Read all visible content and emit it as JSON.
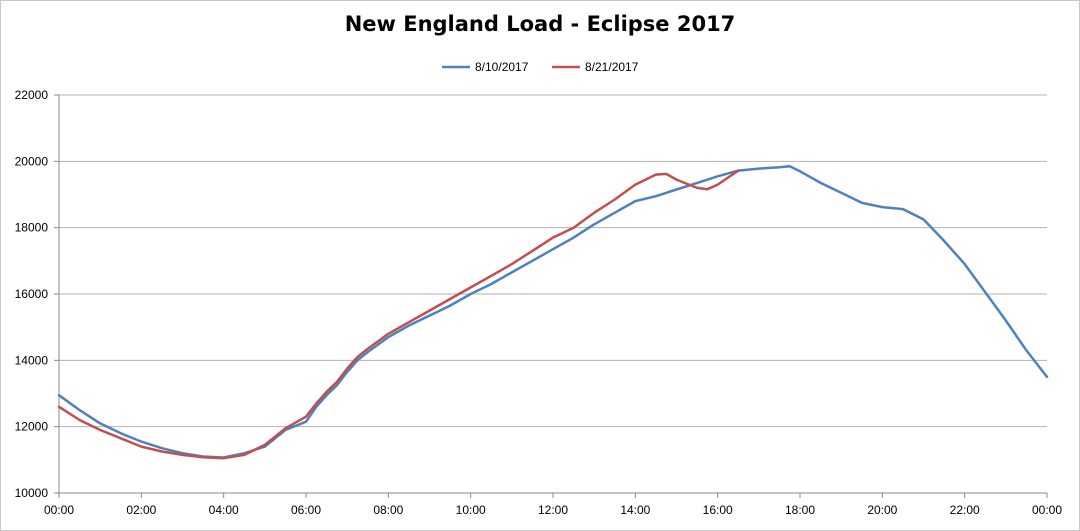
{
  "chart_data": {
    "type": "line",
    "title": "New England Load - Eclipse 2017",
    "xlabel": "",
    "ylabel": "",
    "xlim": [
      0,
      24
    ],
    "ylim": [
      10000,
      22000
    ],
    "x_ticks": [
      "00:00",
      "02:00",
      "04:00",
      "06:00",
      "08:00",
      "10:00",
      "12:00",
      "14:00",
      "16:00",
      "18:00",
      "20:00",
      "22:00",
      "00:00"
    ],
    "y_ticks": [
      "10000",
      "12000",
      "14000",
      "16000",
      "18000",
      "20000",
      "22000"
    ],
    "grid": "horizontal",
    "legend": "top-center",
    "series": [
      {
        "name": "8/10/2017",
        "color": "#4f81bd",
        "points": [
          [
            0,
            12950
          ],
          [
            0.5,
            12500
          ],
          [
            1,
            12100
          ],
          [
            1.5,
            11800
          ],
          [
            2,
            11550
          ],
          [
            2.5,
            11350
          ],
          [
            3,
            11200
          ],
          [
            3.5,
            11100
          ],
          [
            4,
            11070
          ],
          [
            4.5,
            11200
          ],
          [
            5,
            11400
          ],
          [
            5.5,
            11900
          ],
          [
            6,
            12150
          ],
          [
            6.25,
            12600
          ],
          [
            6.5,
            12950
          ],
          [
            6.75,
            13250
          ],
          [
            7,
            13650
          ],
          [
            7.25,
            14000
          ],
          [
            7.5,
            14250
          ],
          [
            8,
            14700
          ],
          [
            8.5,
            15050
          ],
          [
            9,
            15350
          ],
          [
            9.5,
            15650
          ],
          [
            10,
            16000
          ],
          [
            10.5,
            16300
          ],
          [
            11,
            16650
          ],
          [
            11.5,
            17000
          ],
          [
            12,
            17350
          ],
          [
            12.5,
            17700
          ],
          [
            13,
            18100
          ],
          [
            13.5,
            18450
          ],
          [
            14,
            18800
          ],
          [
            14.5,
            18950
          ],
          [
            15,
            19150
          ],
          [
            15.5,
            19350
          ],
          [
            16,
            19550
          ],
          [
            16.5,
            19720
          ],
          [
            17,
            19780
          ],
          [
            17.5,
            19820
          ],
          [
            17.75,
            19850
          ],
          [
            18,
            19700
          ],
          [
            18.5,
            19350
          ],
          [
            19,
            19050
          ],
          [
            19.5,
            18750
          ],
          [
            20,
            18620
          ],
          [
            20.5,
            18560
          ],
          [
            21,
            18250
          ],
          [
            21.5,
            17600
          ],
          [
            22,
            16900
          ],
          [
            22.5,
            16050
          ],
          [
            23,
            15200
          ],
          [
            23.5,
            14300
          ],
          [
            24,
            13500
          ]
        ]
      },
      {
        "name": "8/21/2017",
        "color": "#c0504d",
        "points": [
          [
            0,
            12600
          ],
          [
            0.5,
            12200
          ],
          [
            1,
            11900
          ],
          [
            1.5,
            11650
          ],
          [
            2,
            11400
          ],
          [
            2.5,
            11250
          ],
          [
            3,
            11150
          ],
          [
            3.5,
            11080
          ],
          [
            4,
            11050
          ],
          [
            4.5,
            11150
          ],
          [
            5,
            11450
          ],
          [
            5.5,
            11950
          ],
          [
            6,
            12300
          ],
          [
            6.25,
            12700
          ],
          [
            6.5,
            13050
          ],
          [
            6.75,
            13350
          ],
          [
            7,
            13750
          ],
          [
            7.25,
            14100
          ],
          [
            7.5,
            14350
          ],
          [
            8,
            14800
          ],
          [
            8.5,
            15150
          ],
          [
            9,
            15500
          ],
          [
            9.5,
            15850
          ],
          [
            10,
            16200
          ],
          [
            10.5,
            16550
          ],
          [
            11,
            16900
          ],
          [
            11.5,
            17300
          ],
          [
            12,
            17700
          ],
          [
            12.5,
            18000
          ],
          [
            13,
            18450
          ],
          [
            13.5,
            18850
          ],
          [
            14,
            19300
          ],
          [
            14.5,
            19600
          ],
          [
            14.75,
            19620
          ],
          [
            15,
            19450
          ],
          [
            15.5,
            19200
          ],
          [
            15.75,
            19160
          ],
          [
            16,
            19300
          ],
          [
            16.5,
            19720
          ]
        ]
      }
    ]
  }
}
